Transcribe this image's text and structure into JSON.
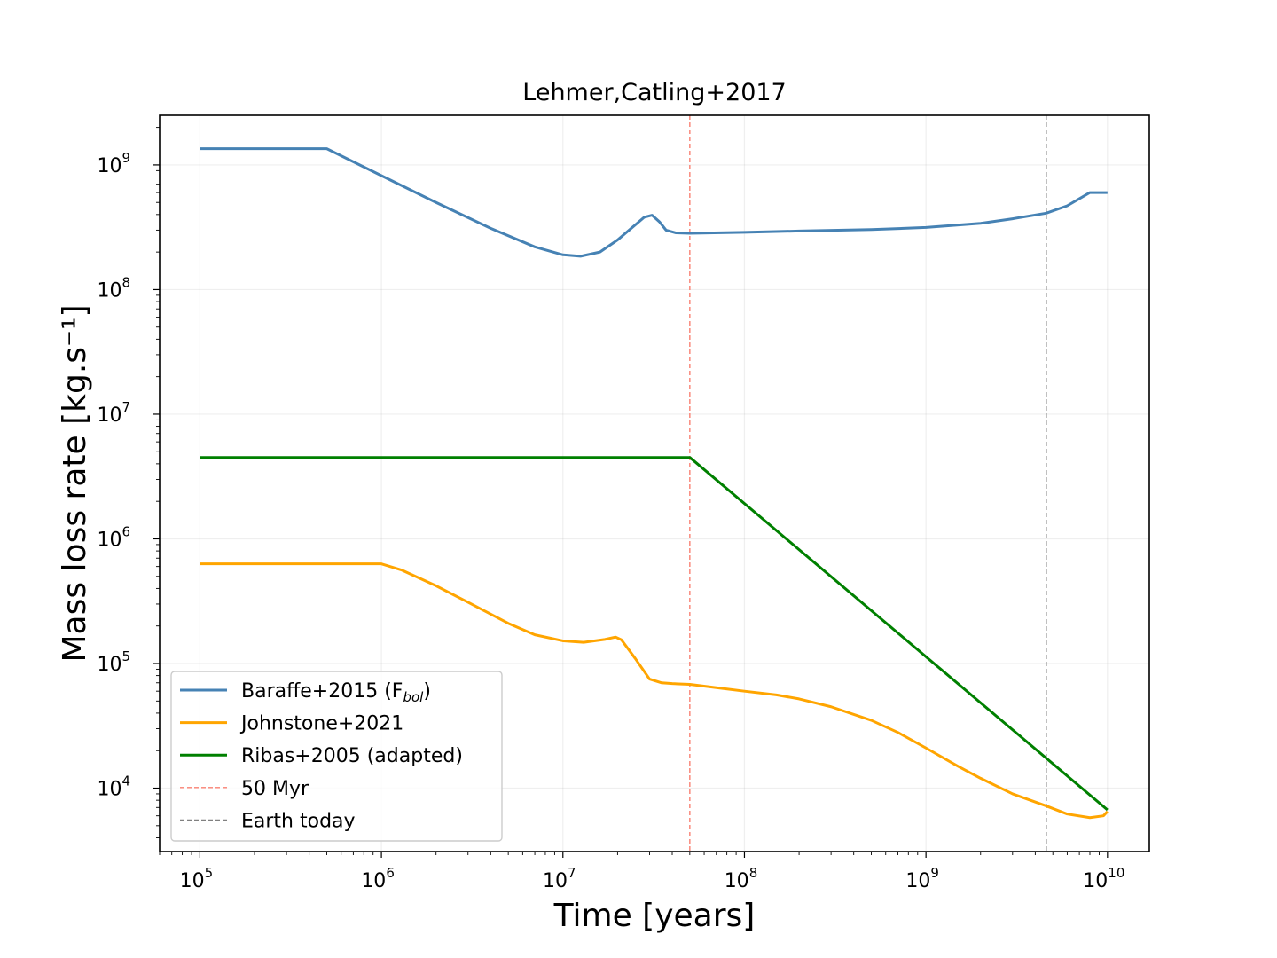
{
  "chart_data": {
    "type": "line",
    "title": "Lehmer,Catling+2017",
    "xlabel": "Time [years]",
    "ylabel": "Mass loss rate [kg.s⁻¹]",
    "xscale": "log",
    "yscale": "log",
    "xlim": [
      60000,
      17000000000
    ],
    "ylim": [
      3100,
      2500000000
    ],
    "xticks": [
      {
        "value": 100000,
        "base": "10",
        "exp": "5"
      },
      {
        "value": 1000000,
        "base": "10",
        "exp": "6"
      },
      {
        "value": 10000000,
        "base": "10",
        "exp": "7"
      },
      {
        "value": 100000000,
        "base": "10",
        "exp": "8"
      },
      {
        "value": 1000000000,
        "base": "10",
        "exp": "9"
      },
      {
        "value": 10000000000,
        "base": "10",
        "exp": "10"
      }
    ],
    "yticks": [
      {
        "value": 10000,
        "base": "10",
        "exp": "4"
      },
      {
        "value": 100000,
        "base": "10",
        "exp": "5"
      },
      {
        "value": 1000000,
        "base": "10",
        "exp": "6"
      },
      {
        "value": 10000000,
        "base": "10",
        "exp": "7"
      },
      {
        "value": 100000000,
        "base": "10",
        "exp": "8"
      },
      {
        "value": 1000000000,
        "base": "10",
        "exp": "9"
      }
    ],
    "grid": true,
    "legend_position": "bottom-left",
    "series": [
      {
        "name": "Baraffe+2015 (F",
        "name_sub": "bol",
        "name_suffix": ")",
        "color": "#4682b4",
        "style": "solid",
        "points": [
          [
            100000,
            1350000000
          ],
          [
            500000,
            1350000000
          ],
          [
            1000000,
            820000000
          ],
          [
            2000000,
            500000000
          ],
          [
            4000000,
            310000000
          ],
          [
            7000000,
            220000000
          ],
          [
            10000000,
            190000000
          ],
          [
            12500000,
            185000000
          ],
          [
            16000000,
            200000000
          ],
          [
            20000000,
            250000000
          ],
          [
            25000000,
            330000000
          ],
          [
            28000000,
            380000000
          ],
          [
            31000000,
            395000000
          ],
          [
            34000000,
            350000000
          ],
          [
            37000000,
            300000000
          ],
          [
            42000000,
            285000000
          ],
          [
            50000000,
            283000000
          ],
          [
            100000000,
            288000000
          ],
          [
            200000000,
            295000000
          ],
          [
            500000000,
            303000000
          ],
          [
            1000000000,
            315000000
          ],
          [
            2000000000,
            340000000
          ],
          [
            3000000000,
            370000000
          ],
          [
            4600000000,
            410000000
          ],
          [
            6000000000,
            470000000
          ],
          [
            8000000000,
            600000000
          ],
          [
            10000000000,
            600000000
          ]
        ]
      },
      {
        "name": "Johnstone+2021",
        "color": "#ffa500",
        "style": "solid",
        "points": [
          [
            100000,
            630000
          ],
          [
            1000000,
            630000
          ],
          [
            1300000,
            560000
          ],
          [
            2000000,
            420000
          ],
          [
            3000000,
            310000
          ],
          [
            5000000,
            210000
          ],
          [
            7000000,
            170000
          ],
          [
            10000000,
            152000
          ],
          [
            13000000,
            148000
          ],
          [
            17000000,
            156000
          ],
          [
            19500000,
            163000
          ],
          [
            21000000,
            155000
          ],
          [
            25000000,
            110000
          ],
          [
            30000000,
            75000
          ],
          [
            35000000,
            70000
          ],
          [
            40000000,
            69000
          ],
          [
            50000000,
            68000
          ],
          [
            70000000,
            64000
          ],
          [
            100000000,
            60000
          ],
          [
            150000000,
            56000
          ],
          [
            200000000,
            52000
          ],
          [
            300000000,
            45000
          ],
          [
            500000000,
            35000
          ],
          [
            700000000,
            28000
          ],
          [
            1000000000,
            21000
          ],
          [
            1500000000,
            15000
          ],
          [
            2000000000,
            12000
          ],
          [
            3000000000,
            9000
          ],
          [
            4600000000,
            7200
          ],
          [
            6000000000,
            6200
          ],
          [
            8000000000,
            5800
          ],
          [
            9500000000,
            6000
          ],
          [
            10000000000,
            6500
          ]
        ]
      },
      {
        "name": "Ribas+2005 (adapted)",
        "color": "#008000",
        "style": "solid",
        "points": [
          [
            100000,
            4500000
          ],
          [
            50000000,
            4500000
          ],
          [
            10000000000,
            6700
          ]
        ]
      },
      {
        "name": "50 Myr",
        "color": "#fa8072",
        "style": "dashed",
        "vline": 50000000
      },
      {
        "name": "Earth today",
        "color": "#808080",
        "style": "dashed",
        "vline": 4600000000
      }
    ]
  }
}
